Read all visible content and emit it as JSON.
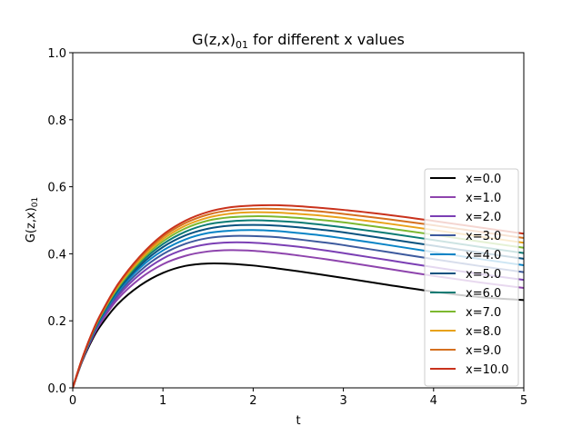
{
  "chart_data": {
    "type": "line",
    "title": "G(z,x)",
    "title_sub": "01",
    "title_rest": " for different x values",
    "xlabel": "t",
    "ylabel": "G(z,x)",
    "ylabel_sub": "01",
    "xlim": [
      0,
      5
    ],
    "ylim": [
      0,
      1.0
    ],
    "xticks": [
      "0",
      "1",
      "2",
      "3",
      "4",
      "5"
    ],
    "yticks": [
      "0.0",
      "0.2",
      "0.4",
      "0.6",
      "0.8",
      "1.0"
    ],
    "grid": false,
    "legend_position": "center-right",
    "x": [
      0,
      0.1,
      0.2,
      0.3,
      0.5,
      0.75,
      1.0,
      1.25,
      1.5,
      1.75,
      2.0,
      2.25,
      2.5,
      2.75,
      3.0,
      3.5,
      4.0,
      4.5,
      5.0
    ],
    "series": [
      {
        "name": "x=0.0",
        "color": "#000000",
        "values": [
          0,
          0.076,
          0.135,
          0.182,
          0.25,
          0.306,
          0.343,
          0.364,
          0.371,
          0.37,
          0.365,
          0.357,
          0.348,
          0.338,
          0.328,
          0.307,
          0.287,
          0.271,
          0.262
        ]
      },
      {
        "name": "x=1.0",
        "color": "#8e44ad",
        "values": [
          0,
          0.078,
          0.14,
          0.19,
          0.265,
          0.327,
          0.369,
          0.394,
          0.407,
          0.411,
          0.409,
          0.403,
          0.395,
          0.386,
          0.376,
          0.355,
          0.334,
          0.315,
          0.298
        ]
      },
      {
        "name": "x=2.0",
        "color": "#7b3fb4",
        "values": [
          0,
          0.079,
          0.143,
          0.195,
          0.273,
          0.34,
          0.386,
          0.414,
          0.429,
          0.434,
          0.433,
          0.428,
          0.421,
          0.412,
          0.402,
          0.381,
          0.36,
          0.34,
          0.322
        ]
      },
      {
        "name": "x=3.0",
        "color": "#3d5a9e",
        "values": [
          0,
          0.08,
          0.145,
          0.199,
          0.28,
          0.35,
          0.399,
          0.43,
          0.447,
          0.453,
          0.453,
          0.45,
          0.443,
          0.435,
          0.426,
          0.405,
          0.384,
          0.364,
          0.345
        ]
      },
      {
        "name": "x=4.0",
        "color": "#0a84c6",
        "values": [
          0,
          0.081,
          0.147,
          0.202,
          0.286,
          0.359,
          0.41,
          0.443,
          0.462,
          0.469,
          0.471,
          0.468,
          0.462,
          0.455,
          0.446,
          0.426,
          0.405,
          0.385,
          0.366
        ]
      },
      {
        "name": "x=5.0",
        "color": "#08527f",
        "values": [
          0,
          0.082,
          0.149,
          0.205,
          0.291,
          0.366,
          0.42,
          0.455,
          0.475,
          0.484,
          0.486,
          0.484,
          0.479,
          0.472,
          0.464,
          0.444,
          0.424,
          0.404,
          0.385
        ]
      },
      {
        "name": "x=6.0",
        "color": "#0b7b74",
        "values": [
          0,
          0.082,
          0.15,
          0.207,
          0.295,
          0.373,
          0.429,
          0.466,
          0.488,
          0.497,
          0.5,
          0.498,
          0.494,
          0.487,
          0.479,
          0.461,
          0.441,
          0.421,
          0.402
        ]
      },
      {
        "name": "x=7.0",
        "color": "#7cb82f",
        "values": [
          0,
          0.083,
          0.152,
          0.21,
          0.299,
          0.379,
          0.437,
          0.476,
          0.499,
          0.509,
          0.512,
          0.511,
          0.507,
          0.501,
          0.494,
          0.476,
          0.457,
          0.437,
          0.418
        ]
      },
      {
        "name": "x=8.0",
        "color": "#e8a21a",
        "values": [
          0,
          0.083,
          0.153,
          0.212,
          0.303,
          0.384,
          0.444,
          0.484,
          0.508,
          0.52,
          0.524,
          0.523,
          0.519,
          0.514,
          0.507,
          0.49,
          0.471,
          0.452,
          0.433
        ]
      },
      {
        "name": "x=9.0",
        "color": "#d5701f",
        "values": [
          0,
          0.084,
          0.154,
          0.213,
          0.306,
          0.389,
          0.451,
          0.492,
          0.517,
          0.53,
          0.534,
          0.534,
          0.531,
          0.526,
          0.519,
          0.503,
          0.485,
          0.466,
          0.447
        ]
      },
      {
        "name": "x=10.0",
        "color": "#c9321c",
        "values": [
          0,
          0.084,
          0.155,
          0.215,
          0.309,
          0.394,
          0.457,
          0.499,
          0.525,
          0.539,
          0.544,
          0.545,
          0.542,
          0.537,
          0.531,
          0.516,
          0.498,
          0.479,
          0.46
        ]
      }
    ]
  }
}
